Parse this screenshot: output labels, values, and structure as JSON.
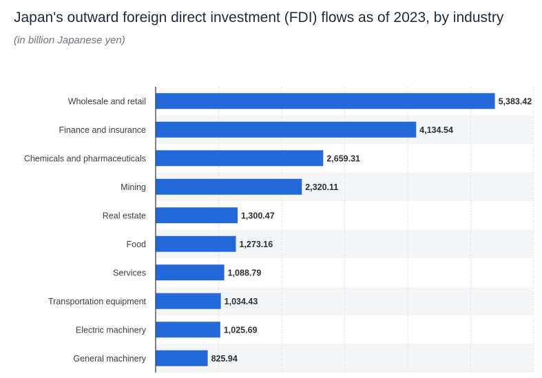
{
  "chart_data": {
    "type": "bar",
    "orientation": "horizontal",
    "title": "Japan's outward foreign direct investment (FDI) flows as of 2023, by industry",
    "subtitle": "(in billion Japanese yen)",
    "categories": [
      "Wholesale and retail",
      "Finance and insurance",
      "Chemicals and pharmaceuticals",
      "Mining",
      "Real estate",
      "Food",
      "Services",
      "Transportation equipment",
      "Electric machinery",
      "General machinery"
    ],
    "values": [
      5383.42,
      4134.54,
      2659.31,
      2320.11,
      1300.47,
      1273.16,
      1088.79,
      1034.43,
      1025.69,
      825.94
    ],
    "value_labels": [
      "5,383.42",
      "4,134.54",
      "2,659.31",
      "2,320.11",
      "1,300.47",
      "1,273.16",
      "1,088.79",
      "1,034.43",
      "1,025.69",
      "825.94"
    ],
    "xlim": [
      0,
      6000
    ],
    "grid": true,
    "bar_color": "#2468d9",
    "band_color": "#f4f5f7"
  }
}
